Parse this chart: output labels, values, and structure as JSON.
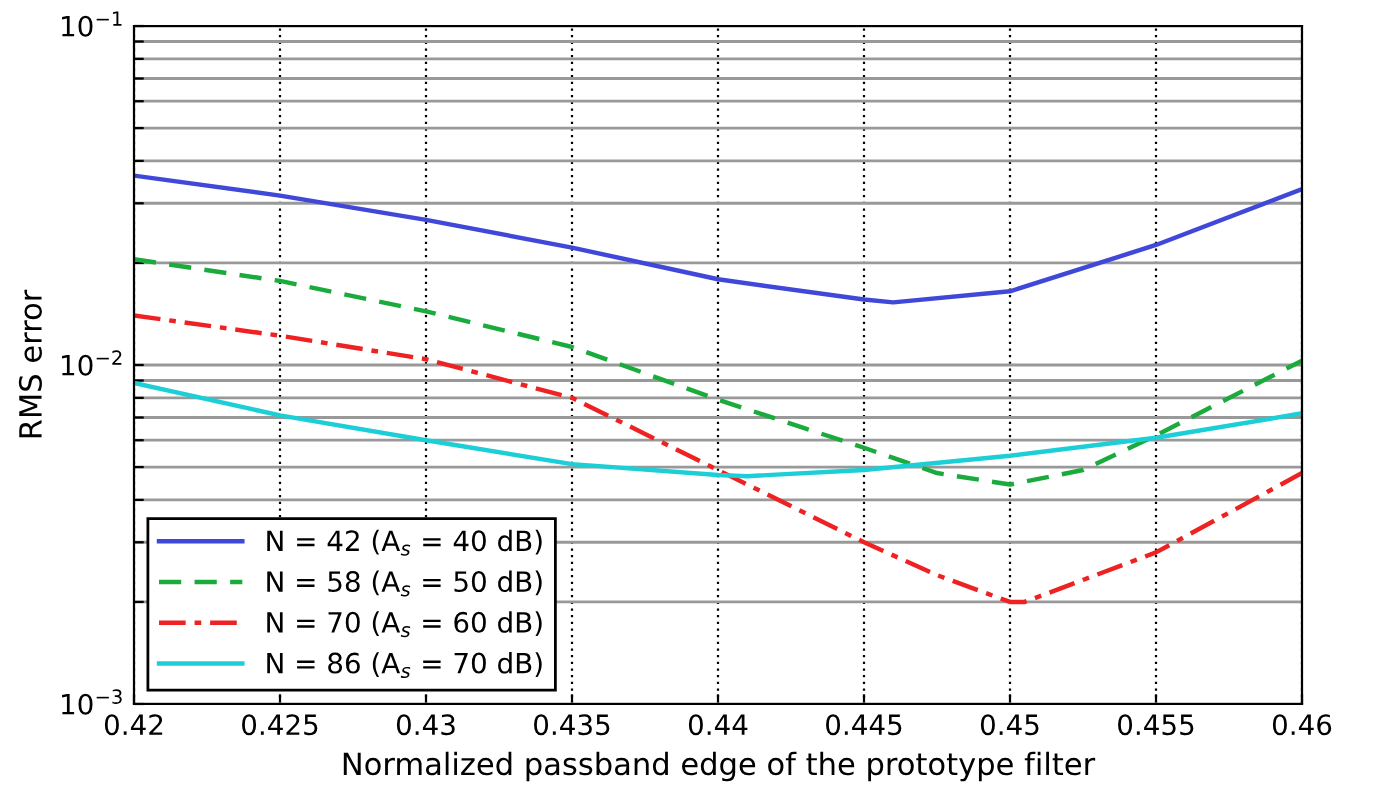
{
  "chart_data": {
    "type": "line",
    "xlabel": "Normalized passband edge of the prototype filter",
    "ylabel": "RMS error",
    "log": "y",
    "grid": true,
    "legend": "bottom left",
    "marker": "none",
    "xlim": [
      0.42,
      0.46
    ],
    "xticks": [
      0.42,
      0.425,
      0.43,
      0.435,
      0.44,
      0.445,
      0.45,
      0.455,
      0.46
    ],
    "ylim": [
      0.001,
      0.1
    ],
    "yticks": [
      {
        "value": 0.001,
        "label": "10$^{−3}$"
      },
      {
        "value": 0.002,
        "label": null
      },
      {
        "value": 0.003,
        "label": null
      },
      {
        "value": 0.004,
        "label": null
      },
      {
        "value": 0.005,
        "label": null
      },
      {
        "value": 0.006,
        "label": null
      },
      {
        "value": 0.007,
        "label": null
      },
      {
        "value": 0.008,
        "label": null
      },
      {
        "value": 0.009,
        "label": null
      },
      {
        "value": 0.01,
        "label": "10$^{−2}$"
      },
      {
        "value": 0.02,
        "label": null
      },
      {
        "value": 0.03,
        "label": null
      },
      {
        "value": 0.04,
        "label": null
      },
      {
        "value": 0.05,
        "label": null
      },
      {
        "value": 0.06,
        "label": null
      },
      {
        "value": 0.07,
        "label": null
      },
      {
        "value": 0.08,
        "label": null
      },
      {
        "value": 0.09,
        "label": null
      },
      {
        "value": 0.1,
        "label": "10$^{−1}$"
      }
    ],
    "series": [
      {
        "name": "N = 42 (A$_{s}$ = 40 dB)",
        "color": "#3f48d8",
        "line_style": "solid",
        "x": [
          0.42,
          0.425,
          0.43,
          0.435,
          0.44,
          0.445,
          0.446,
          0.45,
          0.455,
          0.46
        ],
        "values": [
          0.0362,
          0.0316,
          0.0268,
          0.0222,
          0.0179,
          0.0156,
          0.0153,
          0.0165,
          0.0226,
          0.033
        ]
      },
      {
        "name": "N = 58 (A$_{s}$ = 50 dB)",
        "color": "#1aab3c",
        "line_style": "dashed",
        "x": [
          0.42,
          0.425,
          0.43,
          0.435,
          0.44,
          0.445,
          0.4475,
          0.45,
          0.4525,
          0.455,
          0.46
        ],
        "values": [
          0.0205,
          0.0177,
          0.0144,
          0.0113,
          0.0079,
          0.0057,
          0.0048,
          0.00444,
          0.0049,
          0.0062,
          0.0103
        ]
      },
      {
        "name": "N = 70 (A$_{s}$ = 60 dB)",
        "color": "#ee2222",
        "line_style": "dashdot",
        "x": [
          0.42,
          0.425,
          0.43,
          0.435,
          0.44,
          0.445,
          0.4475,
          0.45,
          0.4505,
          0.455,
          0.46
        ],
        "values": [
          0.014,
          0.0122,
          0.0104,
          0.008,
          0.0049,
          0.003,
          0.0024,
          0.002,
          0.002,
          0.0028,
          0.0048
        ]
      },
      {
        "name": "N = 86 (A$_{s}$ = 70 dB)",
        "color": "#1ccfd6",
        "line_style": "solid",
        "x": [
          0.42,
          0.425,
          0.43,
          0.435,
          0.44,
          0.441,
          0.445,
          0.45,
          0.455,
          0.46
        ],
        "values": [
          0.00885,
          0.0071,
          0.006,
          0.0051,
          0.00474,
          0.0047,
          0.0049,
          0.0054,
          0.0061,
          0.0072
        ]
      }
    ]
  }
}
